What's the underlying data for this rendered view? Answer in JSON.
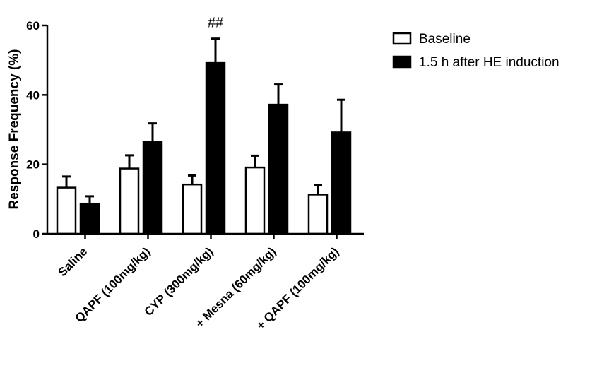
{
  "chart_data": {
    "type": "bar",
    "title": "",
    "xlabel": "",
    "ylabel": "Response Frequency (%)",
    "ylim": [
      0,
      60
    ],
    "yticks": [
      0,
      20,
      40,
      60
    ],
    "grid": false,
    "legend_position": "top-right",
    "categories": [
      "Saline",
      "QAPF (100mg/kg)",
      "CYP (300mg/kg)",
      "+ Mesna (60mg/kg)",
      "+ QAPF (100mg/kg)"
    ],
    "series": [
      {
        "name": "Baseline",
        "fill": "#ffffff",
        "values": [
          13.3,
          18.8,
          14.2,
          19.1,
          11.3
        ],
        "errors": [
          3.2,
          3.8,
          2.6,
          3.4,
          2.8
        ]
      },
      {
        "name": "1.5 h after HE induction",
        "fill": "#000000",
        "values": [
          8.7,
          26.4,
          49.2,
          37.2,
          29.2
        ],
        "errors": [
          2.1,
          5.4,
          7.0,
          5.8,
          9.4
        ]
      }
    ],
    "annotations": [
      {
        "text": "##",
        "category_index": 2,
        "series_index": 1
      }
    ]
  }
}
